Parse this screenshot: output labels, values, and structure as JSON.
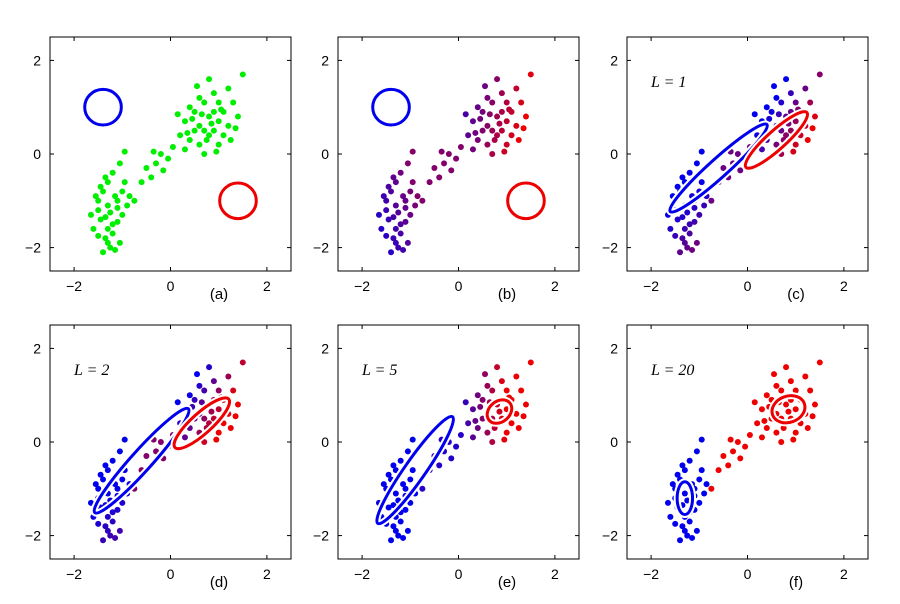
{
  "chart_data": [
    {
      "type": "scatter",
      "panel": "(a)",
      "annotation": "",
      "point_color": "single",
      "xlim": [
        -2.5,
        2.5
      ],
      "ylim": [
        -2.5,
        2.5
      ],
      "xticks": [
        "-2",
        "0",
        "2"
      ],
      "yticks": [
        "-2",
        "0",
        "2"
      ],
      "ellipses": [
        {
          "color": "#0000ee",
          "center": [
            -1.4,
            1.0
          ],
          "rx": 0.38,
          "ry": 0.38,
          "angle": 0
        },
        {
          "color": "#ee0000",
          "center": [
            1.4,
            -1.0
          ],
          "rx": 0.38,
          "ry": 0.38,
          "angle": 0
        }
      ]
    },
    {
      "type": "scatter",
      "panel": "(b)",
      "annotation": "",
      "point_color": "blend",
      "xlim": [
        -2.5,
        2.5
      ],
      "ylim": [
        -2.5,
        2.5
      ],
      "xticks": [
        "-2",
        "0",
        "2"
      ],
      "yticks": [
        "-2",
        "0",
        "2"
      ],
      "ellipses": [
        {
          "color": "#0000ee",
          "center": [
            -1.4,
            1.0
          ],
          "rx": 0.38,
          "ry": 0.38,
          "angle": 0
        },
        {
          "color": "#ee0000",
          "center": [
            1.4,
            -1.0
          ],
          "rx": 0.38,
          "ry": 0.38,
          "angle": 0
        }
      ]
    },
    {
      "type": "scatter",
      "panel": "(c)",
      "annotation": "L = 1",
      "point_color": "blend",
      "xlim": [
        -2.5,
        2.5
      ],
      "ylim": [
        -2.5,
        2.5
      ],
      "xticks": [
        "-2",
        "0",
        "2"
      ],
      "yticks": [
        "-2",
        "0",
        "2"
      ],
      "ellipses": [
        {
          "color": "#0000ee",
          "center": [
            -0.6,
            -0.3
          ],
          "rx": 1.35,
          "ry": 0.2,
          "angle": 42
        },
        {
          "color": "#ee0000",
          "center": [
            0.6,
            0.3
          ],
          "rx": 0.85,
          "ry": 0.2,
          "angle": 42
        }
      ]
    },
    {
      "type": "scatter",
      "panel": "(d)",
      "annotation": "L = 2",
      "point_color": "blend",
      "xlim": [
        -2.5,
        2.5
      ],
      "ylim": [
        -2.5,
        2.5
      ],
      "xticks": [
        "-2",
        "0",
        "2"
      ],
      "yticks": [
        "-2",
        "0",
        "2"
      ],
      "ellipses": [
        {
          "color": "#0000ee",
          "center": [
            -0.6,
            -0.4
          ],
          "rx": 1.45,
          "ry": 0.22,
          "angle": 48
        },
        {
          "color": "#ee0000",
          "center": [
            0.65,
            0.4
          ],
          "rx": 0.75,
          "ry": 0.22,
          "angle": 42
        }
      ]
    },
    {
      "type": "scatter",
      "panel": "(e)",
      "annotation": "L = 5",
      "point_color": "blend",
      "xlim": [
        -2.5,
        2.5
      ],
      "ylim": [
        -2.5,
        2.5
      ],
      "xticks": [
        "-2",
        "0",
        "2"
      ],
      "yticks": [
        "-2",
        "0",
        "2"
      ],
      "ellipses": [
        {
          "color": "#0000ee",
          "center": [
            -0.9,
            -0.6
          ],
          "rx": 1.35,
          "ry": 0.22,
          "angle": 55
        },
        {
          "color": "#ee0000",
          "center": [
            0.85,
            0.65
          ],
          "rx": 0.28,
          "ry": 0.22,
          "angle": 40
        }
      ]
    },
    {
      "type": "scatter",
      "panel": "(f)",
      "annotation": "L = 20",
      "point_color": "blend",
      "xlim": [
        -2.5,
        2.5
      ],
      "ylim": [
        -2.5,
        2.5
      ],
      "xticks": [
        "-2",
        "0",
        "2"
      ],
      "yticks": [
        "-2",
        "0",
        "2"
      ],
      "ellipses": [
        {
          "color": "#0000ee",
          "center": [
            -1.3,
            -1.2
          ],
          "rx": 0.16,
          "ry": 0.35,
          "angle": 0
        },
        {
          "color": "#ee0000",
          "center": [
            0.85,
            0.7
          ],
          "rx": 0.35,
          "ry": 0.28,
          "angle": 20
        }
      ]
    }
  ],
  "colors": {
    "green": "#00ee00",
    "blue": "#0000ee",
    "red": "#ee0000",
    "purple": "#8800aa"
  },
  "cluster_points": {
    "lower_left": [
      [
        -1.35,
        -1.8
      ],
      [
        -1.2,
        -1.5
      ],
      [
        -1.5,
        -1.2
      ],
      [
        -1.1,
        -1.0
      ],
      [
        -1.4,
        -0.8
      ],
      [
        -1.3,
        -0.6
      ],
      [
        -1.0,
        -1.3
      ],
      [
        -1.6,
        -1.6
      ],
      [
        -1.25,
        -2.0
      ],
      [
        -1.45,
        -1.4
      ],
      [
        -1.15,
        -0.9
      ],
      [
        -0.95,
        -0.6
      ],
      [
        -1.3,
        -1.1
      ],
      [
        -1.55,
        -0.9
      ],
      [
        -1.2,
        -1.7
      ],
      [
        -1.05,
        -1.9
      ],
      [
        -1.4,
        -2.1
      ],
      [
        -0.9,
        -1.1
      ],
      [
        -1.35,
        -0.5
      ],
      [
        -1.5,
        -1.0
      ],
      [
        -1.1,
        -1.45
      ],
      [
        -1.25,
        -1.25
      ],
      [
        -1.65,
        -1.3
      ],
      [
        -1.0,
        -0.8
      ],
      [
        -1.3,
        -1.6
      ],
      [
        -1.2,
        -0.4
      ],
      [
        -1.45,
        -0.7
      ],
      [
        -1.15,
        -2.05
      ],
      [
        -0.85,
        -0.9
      ],
      [
        -1.35,
        -1.35
      ],
      [
        -1.05,
        -0.2
      ],
      [
        -0.95,
        0.05
      ],
      [
        -1.3,
        -1.9
      ],
      [
        -1.5,
        -1.75
      ],
      [
        -1.1,
        -1.15
      ]
    ],
    "upper_right": [
      [
        0.6,
        0.6
      ],
      [
        0.8,
        0.8
      ],
      [
        0.4,
        0.3
      ],
      [
        0.9,
        0.5
      ],
      [
        1.1,
        0.9
      ],
      [
        0.7,
        1.1
      ],
      [
        0.5,
        0.9
      ],
      [
        1.2,
        0.6
      ],
      [
        0.3,
        0.7
      ],
      [
        0.9,
        1.3
      ],
      [
        0.6,
        0.2
      ],
      [
        1.0,
        0.2
      ],
      [
        0.8,
        0.4
      ],
      [
        0.4,
        1.0
      ],
      [
        1.3,
        1.1
      ],
      [
        0.7,
        0.5
      ],
      [
        1.0,
        0.7
      ],
      [
        0.5,
        0.5
      ],
      [
        0.9,
        0.9
      ],
      [
        1.1,
        0.4
      ],
      [
        0.2,
        0.4
      ],
      [
        0.6,
        1.2
      ],
      [
        1.4,
        0.8
      ],
      [
        0.8,
        1.6
      ],
      [
        0.3,
        0.1
      ],
      [
        1.2,
        1.4
      ],
      [
        0.7,
        0.0
      ],
      [
        1.0,
        1.1
      ],
      [
        0.45,
        0.75
      ],
      [
        0.85,
        0.65
      ],
      [
        1.25,
        0.3
      ],
      [
        0.55,
        1.45
      ],
      [
        0.15,
        0.85
      ],
      [
        0.95,
        0.05
      ],
      [
        1.35,
        0.55
      ],
      [
        1.5,
        1.7
      ],
      [
        0.65,
        0.85
      ],
      [
        0.75,
        0.3
      ],
      [
        1.05,
        0.95
      ],
      [
        0.35,
        0.45
      ]
    ],
    "bridge": [
      [
        -0.5,
        -0.3
      ],
      [
        -0.3,
        -0.2
      ],
      [
        -0.2,
        0.0
      ],
      [
        -0.4,
        -0.5
      ],
      [
        -0.05,
        -0.1
      ],
      [
        -0.6,
        -0.6
      ],
      [
        -0.15,
        -0.35
      ],
      [
        0.05,
        0.15
      ],
      [
        -0.75,
        -1.0
      ],
      [
        -0.35,
        0.05
      ]
    ]
  },
  "panel_labels": [
    "(a)",
    "(b)",
    "(c)",
    "(d)",
    "(e)",
    "(f)"
  ]
}
